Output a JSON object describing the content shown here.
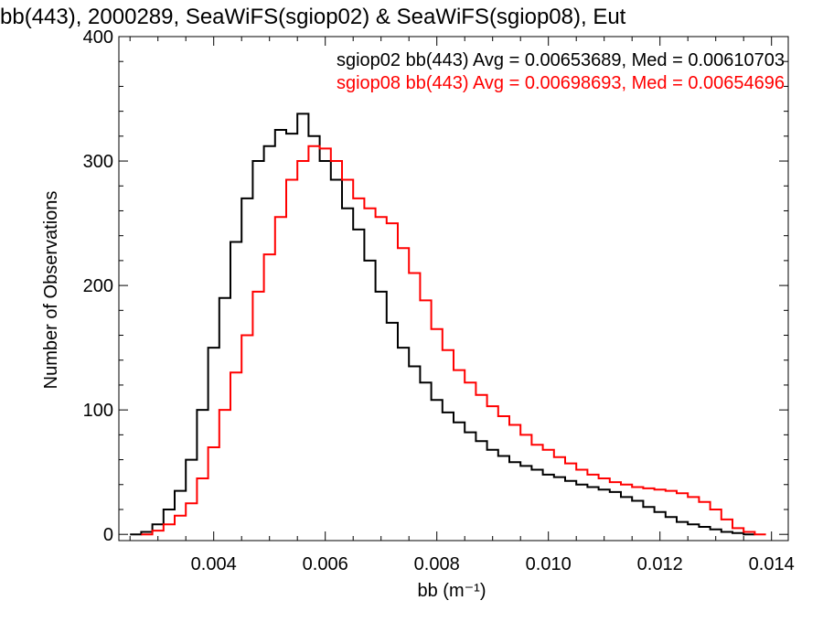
{
  "chart_data": {
    "type": "histogram",
    "title": "bb(443), 2000289, SeaWiFS(sgiop02) & SeaWiFS(sgiop08), Eut",
    "xlabel": "bb (m⁻¹)",
    "ylabel": "Number of Observations",
    "xlim": [
      0.0023,
      0.0143
    ],
    "ylim": [
      -5,
      400
    ],
    "xticks": [
      0.004,
      0.006,
      0.008,
      0.01,
      0.012,
      0.014
    ],
    "xtick_labels": [
      "0.004",
      "0.006",
      "0.008",
      "0.010",
      "0.012",
      "0.014"
    ],
    "yticks": [
      0,
      100,
      200,
      300,
      400
    ],
    "ytick_labels": [
      "0",
      "100",
      "200",
      "300",
      "400"
    ],
    "grid": false,
    "series": [
      {
        "name": "sgiop02",
        "color": "#000000",
        "stats_label": "sgiop02 bb(443) Avg = 0.00653689, Med = 0.00610703",
        "x": [
          0.0026,
          0.0028,
          0.003,
          0.0032,
          0.0034,
          0.0036,
          0.0038,
          0.004,
          0.0042,
          0.0044,
          0.0046,
          0.0048,
          0.005,
          0.0052,
          0.0054,
          0.0056,
          0.0058,
          0.006,
          0.0062,
          0.0064,
          0.0066,
          0.0068,
          0.007,
          0.0072,
          0.0074,
          0.0076,
          0.0078,
          0.008,
          0.0082,
          0.0084,
          0.0086,
          0.0088,
          0.009,
          0.0092,
          0.0094,
          0.0096,
          0.0098,
          0.01,
          0.0102,
          0.0104,
          0.0106,
          0.0108,
          0.011,
          0.0112,
          0.0114,
          0.0116,
          0.0118,
          0.012,
          0.0122,
          0.0124,
          0.0126,
          0.0128,
          0.013,
          0.0132,
          0.0134,
          0.0136
        ],
        "y": [
          0,
          2,
          8,
          20,
          35,
          60,
          100,
          150,
          190,
          235,
          270,
          300,
          312,
          325,
          322,
          338,
          320,
          300,
          285,
          262,
          245,
          220,
          195,
          170,
          150,
          135,
          122,
          108,
          98,
          90,
          82,
          75,
          68,
          63,
          58,
          55,
          52,
          48,
          46,
          43,
          40,
          38,
          36,
          34,
          30,
          27,
          22,
          18,
          14,
          10,
          8,
          6,
          4,
          2,
          1,
          0
        ]
      },
      {
        "name": "sgiop08",
        "color": "#ff0000",
        "stats_label": "sgiop08 bb(443) Avg = 0.00698693, Med = 0.00654696",
        "x": [
          0.0028,
          0.003,
          0.0032,
          0.0034,
          0.0036,
          0.0038,
          0.004,
          0.0042,
          0.0044,
          0.0046,
          0.0048,
          0.005,
          0.0052,
          0.0054,
          0.0056,
          0.0058,
          0.006,
          0.0062,
          0.0064,
          0.0066,
          0.0068,
          0.007,
          0.0072,
          0.0074,
          0.0076,
          0.0078,
          0.008,
          0.0082,
          0.0084,
          0.0086,
          0.0088,
          0.009,
          0.0092,
          0.0094,
          0.0096,
          0.0098,
          0.01,
          0.0102,
          0.0104,
          0.0106,
          0.0108,
          0.011,
          0.0112,
          0.0114,
          0.0116,
          0.0118,
          0.012,
          0.0122,
          0.0124,
          0.0126,
          0.0128,
          0.013,
          0.0132,
          0.0134,
          0.0136,
          0.0138
        ],
        "y": [
          0,
          3,
          8,
          15,
          25,
          45,
          70,
          100,
          130,
          160,
          195,
          225,
          255,
          285,
          300,
          312,
          310,
          300,
          285,
          270,
          262,
          255,
          250,
          230,
          210,
          188,
          165,
          148,
          132,
          122,
          112,
          103,
          95,
          88,
          80,
          72,
          68,
          62,
          57,
          52,
          48,
          45,
          42,
          40,
          38,
          37,
          36,
          35,
          33,
          30,
          26,
          20,
          12,
          5,
          2,
          0
        ]
      }
    ]
  }
}
